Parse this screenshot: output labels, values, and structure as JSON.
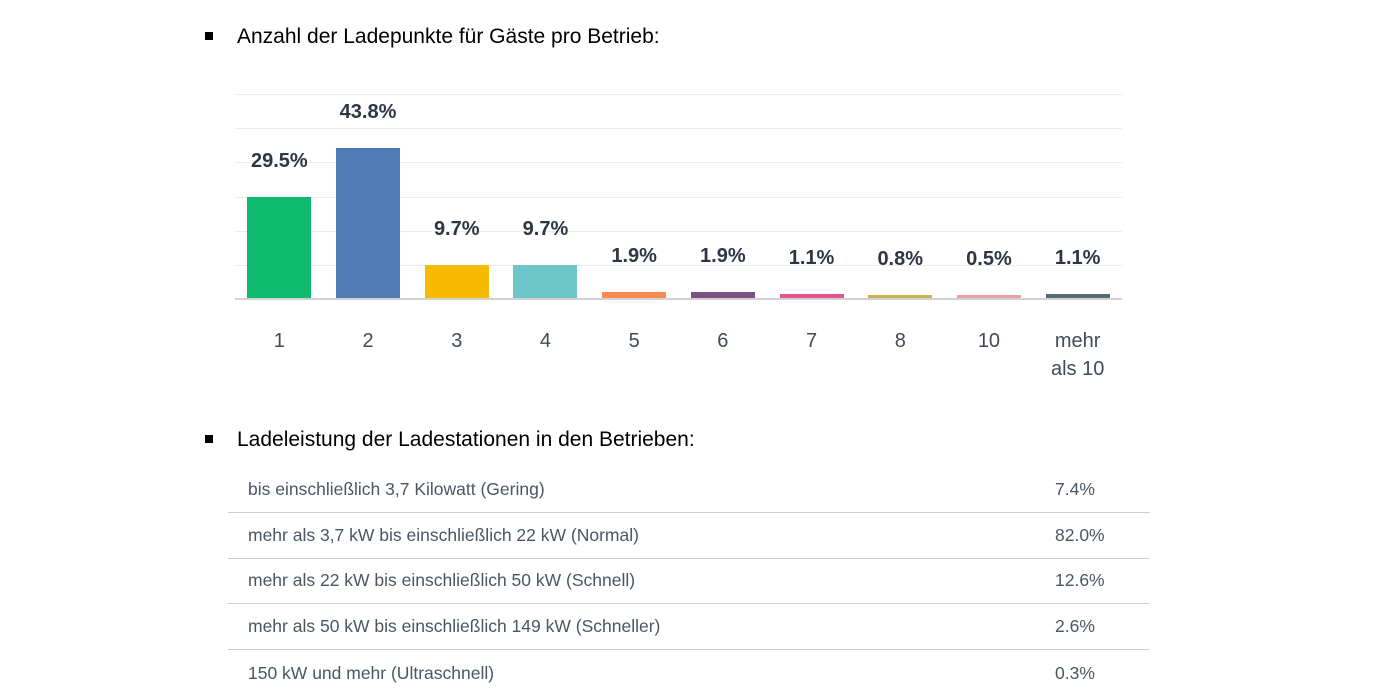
{
  "sections": [
    {
      "title": "Anzahl der Ladepunkte für Gäste pro Betrieb:"
    },
    {
      "title": "Ladeleistung der Ladestationen in den Betrieben:"
    }
  ],
  "colors": {
    "heading_text": "#000000",
    "bar_value_label": "#2c3645",
    "axis_tick_label": "#414b58",
    "table_text": "#4b5665",
    "gridline": "#ececec",
    "axis_line": "#d2d2d2",
    "row_separator": "#cfcfcf"
  },
  "chart_data": [
    {
      "type": "bar",
      "title": "Anzahl der Ladepunkte für Gäste pro Betrieb:",
      "categories": [
        "1",
        "2",
        "3",
        "4",
        "5",
        "6",
        "7",
        "8",
        "10",
        "mehr als 10"
      ],
      "values": [
        29.5,
        43.8,
        9.7,
        9.7,
        1.9,
        1.9,
        1.1,
        0.8,
        0.5,
        1.1
      ],
      "value_labels": [
        "29.5%",
        "43.8%",
        "9.7%",
        "9.7%",
        "1.9%",
        "1.9%",
        "1.1%",
        "0.8%",
        "0.5%",
        "1.1%"
      ],
      "bar_colors": [
        "#0dba6e",
        "#4f7cb5",
        "#f7ba00",
        "#6bc5c9",
        "#f88c4e",
        "#7b5285",
        "#e0558c",
        "#c9b14f",
        "#f09ea9",
        "#5a6a74"
      ],
      "xlabel": "",
      "ylabel": "",
      "ylim": [
        0,
        60
      ],
      "gridline_step": 10,
      "grid": true,
      "legend": false,
      "data_labels": "above bars, bold"
    },
    {
      "type": "table",
      "title": "Ladeleistung der Ladestationen in den Betrieben:",
      "rows": [
        {
          "label": "bis einschließlich 3,7 Kilowatt (Gering)",
          "value": "7.4%"
        },
        {
          "label": "mehr als 3,7 kW bis einschließlich 22 kW (Normal)",
          "value": "82.0%"
        },
        {
          "label": "mehr als 22 kW bis einschließlich 50 kW (Schnell)",
          "value": "12.6%"
        },
        {
          "label": "mehr als 50 kW bis einschließlich 149 kW (Schneller)",
          "value": "2.6%"
        },
        {
          "label": "150 kW und mehr (Ultraschnell)",
          "value": "0.3%"
        }
      ]
    }
  ]
}
